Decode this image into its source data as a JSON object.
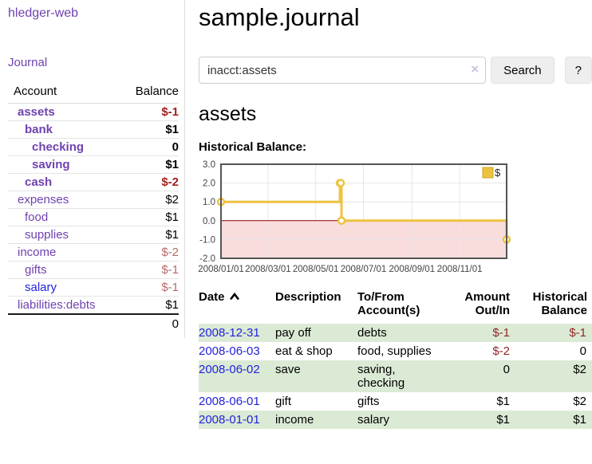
{
  "colors": {
    "link_purple": "#6f42b0",
    "link_blue": "#2222dd",
    "negative_bold": "#a31f1f",
    "negative_muted": "#b46a6a",
    "negative_register": "#8f2727",
    "row_green": "#dbead5",
    "chart_line": "#edc240",
    "chart_negative_bg": "#f9dddd",
    "chart_zero_line": "#8b0000"
  },
  "sidebar": {
    "brand": "hledger-web",
    "nav": {
      "journal": "Journal"
    },
    "accounts_table": {
      "header": {
        "account": "Account",
        "balance": "Balance"
      },
      "accounts": [
        {
          "name": "assets",
          "balance": "$-1",
          "level": 0,
          "bold": true
        },
        {
          "name": "bank",
          "balance": "$1",
          "level": 1,
          "bold": true
        },
        {
          "name": "checking",
          "balance": "0",
          "level": 2,
          "bold": true
        },
        {
          "name": "saving",
          "balance": "$1",
          "level": 2,
          "bold": true
        },
        {
          "name": "cash",
          "balance": "$-2",
          "level": 1,
          "bold": true
        },
        {
          "name": "expenses",
          "balance": "$2",
          "level": 0,
          "bold": false
        },
        {
          "name": "food",
          "balance": "$1",
          "level": 1,
          "bold": false
        },
        {
          "name": "supplies",
          "balance": "$1",
          "level": 1,
          "bold": false
        },
        {
          "name": "income",
          "balance": "$-2",
          "level": 0,
          "bold": false
        },
        {
          "name": "gifts",
          "balance": "$-1",
          "level": 1,
          "bold": false
        },
        {
          "name": "salary",
          "balance": "$-1",
          "level": 1,
          "bold": false,
          "visited": false
        },
        {
          "name": "liabilities:debts",
          "balance": "$1",
          "level": 0,
          "bold": false
        }
      ],
      "total": "0"
    }
  },
  "header": {
    "title": "sample.journal"
  },
  "search": {
    "value": "inacct:assets",
    "clear_icon": "×",
    "search_button": "Search",
    "help_button": "?"
  },
  "account_view": {
    "title": "assets",
    "chart_label": "Historical Balance:"
  },
  "chart_data": {
    "type": "line",
    "step": true,
    "series": [
      {
        "name": "$",
        "color": "#edc240",
        "points": [
          {
            "date": "2008-01-01",
            "value": 1
          },
          {
            "date": "2008-06-01",
            "value": 2
          },
          {
            "date": "2008-06-02",
            "value": 2
          },
          {
            "date": "2008-06-03",
            "value": 0
          },
          {
            "date": "2008-12-31",
            "value": -1
          }
        ]
      }
    ],
    "xlim": [
      "2008-01-01",
      "2008-12-31"
    ],
    "ylim": [
      -2,
      3
    ],
    "y_ticks": [
      3.0,
      2.0,
      1.0,
      0.0,
      -1.0,
      -2.0
    ],
    "x_ticks": [
      "2008/01/01",
      "2008/03/01",
      "2008/05/01",
      "2008/07/01",
      "2008/09/01",
      "2008/11/01"
    ],
    "legend": {
      "label": "$",
      "position": "top-right"
    },
    "grid": true,
    "negative_region_color": "#f9dddd",
    "zero_line_color": "#8b0000"
  },
  "register": {
    "headers": {
      "date": "Date",
      "description": "Description",
      "accounts": "To/From Account(s)",
      "amount": "Amount Out/In",
      "balance": "Historical Balance"
    },
    "rows": [
      {
        "date": "2008-12-31",
        "description": "pay off",
        "accounts": "debts",
        "amount": "$-1",
        "balance": "$-1"
      },
      {
        "date": "2008-06-03",
        "description": "eat & shop",
        "accounts": "food, supplies",
        "amount": "$-2",
        "balance": "0"
      },
      {
        "date": "2008-06-02",
        "description": "save",
        "accounts": "saving,\nchecking",
        "amount": "0",
        "balance": "$2"
      },
      {
        "date": "2008-06-01",
        "description": "gift",
        "accounts": "gifts",
        "amount": "$1",
        "balance": "$2"
      },
      {
        "date": "2008-01-01",
        "description": "income",
        "accounts": "salary",
        "amount": "$1",
        "balance": "$1"
      }
    ]
  }
}
